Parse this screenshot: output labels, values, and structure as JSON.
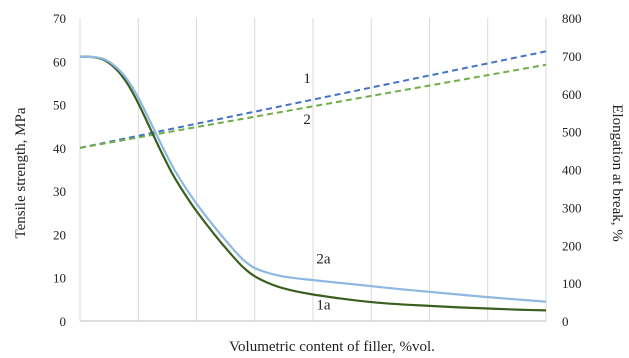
{
  "chart_data": {
    "type": "line",
    "title": "",
    "xlabel": "Volumetric content of filler, %vol.",
    "ylabel_left": "Tensile strength, MPa",
    "ylabel_right": "Elongation at break, %",
    "xlim": [
      0,
      8
    ],
    "ylim_left": [
      0,
      70
    ],
    "ylim_right": [
      0,
      800
    ],
    "yticks_left": [
      "0",
      "10",
      "20",
      "30",
      "40",
      "50",
      "60",
      "70"
    ],
    "yticks_right": [
      "0",
      "100",
      "200",
      "300",
      "400",
      "500",
      "600",
      "700",
      "800"
    ],
    "xtick_labels": [],
    "grid": {
      "vertical": true,
      "horizontal": false
    },
    "legend": "none (inline labels)",
    "series": [
      {
        "name": "1",
        "axis": "left",
        "style": "dashed",
        "color": "#4472c4",
        "x": [
          0,
          8
        ],
        "y": [
          40,
          62.3
        ]
      },
      {
        "name": "2",
        "axis": "left",
        "style": "dashed",
        "color": "#70ad47",
        "x": [
          0,
          8
        ],
        "y": [
          40,
          59.2
        ]
      },
      {
        "name": "1a",
        "axis": "right",
        "style": "solid",
        "color": "#3a5f1e",
        "x": [
          0,
          0.2,
          0.4,
          0.6,
          0.8,
          1.0,
          1.2,
          1.4,
          1.6,
          1.8,
          2.0,
          2.3,
          2.6,
          2.8,
          3.0,
          3.3,
          3.6,
          4.0,
          4.5,
          5.0,
          5.5,
          6.0,
          6.5,
          7.0,
          7.5,
          8.0
        ],
        "y": [
          698,
          697,
          690,
          668,
          630,
          575,
          510,
          445,
          385,
          335,
          290,
          230,
          175,
          142,
          118,
          96,
          82,
          70,
          59,
          50,
          44,
          40,
          36,
          33,
          30,
          28
        ]
      },
      {
        "name": "2a",
        "axis": "right",
        "style": "solid",
        "color": "#8eb8e0",
        "x": [
          0,
          0.2,
          0.4,
          0.6,
          0.8,
          1.0,
          1.2,
          1.4,
          1.6,
          1.8,
          2.0,
          2.3,
          2.6,
          2.8,
          3.0,
          3.3,
          3.6,
          4.0,
          4.5,
          5.0,
          5.5,
          6.0,
          6.5,
          7.0,
          7.5,
          8.0
        ],
        "y": [
          698,
          697,
          692,
          673,
          640,
          590,
          528,
          465,
          405,
          355,
          310,
          250,
          195,
          162,
          140,
          124,
          115,
          108,
          100,
          92,
          84,
          77,
          70,
          63,
          57,
          51
        ]
      }
    ],
    "annotations": [
      {
        "text": "1",
        "series": "1",
        "x": 3.9,
        "axis": "left",
        "y": 55.0
      },
      {
        "text": "2",
        "series": "2",
        "x": 3.9,
        "axis": "left",
        "y": 45.5
      },
      {
        "text": "2a",
        "series": "2a",
        "x": 4.18,
        "axis": "right",
        "y": 152
      },
      {
        "text": "1a",
        "series": "1a",
        "x": 4.18,
        "axis": "right",
        "y": 30
      }
    ]
  }
}
